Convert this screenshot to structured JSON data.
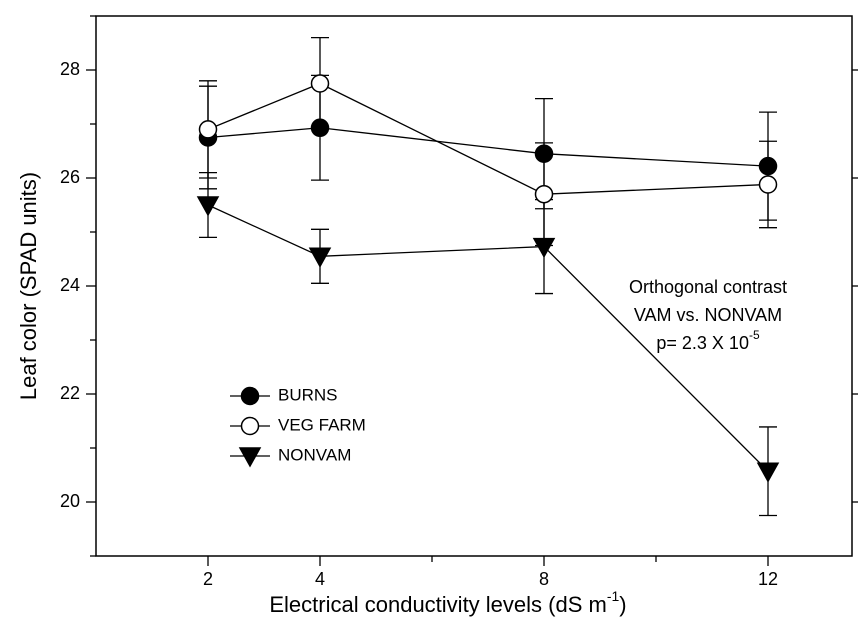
{
  "chart_data": {
    "type": "line",
    "xlabel": [
      "Electrical conductivity levels (dS m",
      "-1",
      ")"
    ],
    "ylabel": "Leaf color (SPAD units)",
    "x": [
      2,
      4,
      8,
      12
    ],
    "xlim": [
      0,
      13.5
    ],
    "xticks": [
      2,
      4,
      8,
      12
    ],
    "xminorticks": [
      6,
      10
    ],
    "ylim": [
      19,
      29
    ],
    "yticks": [
      20,
      22,
      24,
      26,
      28
    ],
    "yminorticks": [
      19,
      21,
      23,
      25,
      27,
      29
    ],
    "series": [
      {
        "name": "BURNS",
        "color": "#000000",
        "marker": "filled-circle",
        "values": [
          26.75,
          26.93,
          26.45,
          26.22
        ],
        "errors": [
          0.95,
          0.97,
          1.02,
          1.0
        ]
      },
      {
        "name": "VEG FARM",
        "color": "#000000",
        "marker": "open-circle",
        "values": [
          26.9,
          27.75,
          25.7,
          25.88
        ],
        "errors": [
          0.9,
          0.85,
          0.95,
          0.8
        ]
      },
      {
        "name": "NONVAM",
        "color": "#000000",
        "marker": "down-triangle",
        "values": [
          25.5,
          24.55,
          24.73,
          20.57
        ],
        "errors": [
          0.6,
          0.5,
          0.87,
          0.82
        ]
      }
    ],
    "annotation": [
      "Orthogonal contrast",
      "VAM vs. NONVAM",
      "p= 2.3 X 10",
      "-5"
    ]
  }
}
